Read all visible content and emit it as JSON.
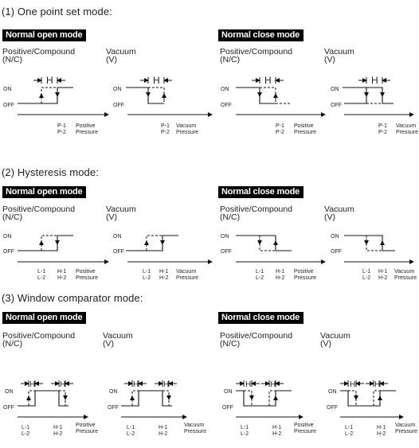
{
  "sections": [
    {
      "title": "(1) One point set mode:",
      "badges": [
        "Normal open mode",
        "Normal close mode"
      ],
      "col_labels": [
        "Positive/Compound\n(N/C)",
        "Vacuum\n(V)",
        "Positive/Compound\n(N/C)",
        "Vacuum\n(V)"
      ],
      "on_label": "ON",
      "off_label": "OFF",
      "h_label": "H",
      "x_labels": [
        {
          "a": "P-1",
          "b": "P-2",
          "c": "Positive",
          "d": "Pressure"
        },
        {
          "a": "P-1",
          "b": "P-2",
          "c": "Vacuum",
          "d": "Pressure"
        },
        {
          "a": "P-1",
          "b": "P-2",
          "c": "Positive",
          "d": "Pressure"
        },
        {
          "a": "P-1",
          "b": "P-2",
          "c": "Vacuum",
          "d": "Pressure"
        }
      ]
    },
    {
      "title": "(2) Hysteresis mode:",
      "badges": [
        "Normal open mode",
        "Normal close mode"
      ],
      "col_labels": [
        "Positive/Compound\n(N/C)",
        "Vacuum\n(V)",
        "Positive/Compound\n(N/C)",
        "Vacuum\n(V)"
      ],
      "on_label": "ON",
      "off_label": "OFF",
      "x_labels": [
        {
          "a": "L-1",
          "b": "L-2",
          "e": "H-1",
          "f": "H-2",
          "c": "Positive",
          "d": "Pressure"
        },
        {
          "a": "L-1",
          "b": "L-2",
          "e": "H-1",
          "f": "H-2",
          "c": "Vacuum",
          "d": "Pressure"
        },
        {
          "a": "L-1",
          "b": "L-2",
          "e": "H-1",
          "f": "H-2",
          "c": "Positive",
          "d": "Pressure"
        },
        {
          "a": "L-1",
          "b": "L-2",
          "e": "H-1",
          "f": "H-2",
          "c": "Vacuum",
          "d": "Pressure"
        }
      ]
    },
    {
      "title": "(3) Window comparator mode:",
      "badges": [
        "Normal open mode",
        "Normal close mode"
      ],
      "col_labels": [
        "Positive/Compound\n(N/C)",
        "Vacuum\n(V)",
        "Positive/Compound\n(N/C)",
        "Vacuum\n(V)"
      ],
      "on_label": "ON",
      "off_label": "OFF",
      "h_label": "H",
      "x_labels": [
        {
          "a": "L-1",
          "b": "L-2",
          "e": "H-1",
          "f": "H-2",
          "c": "Positive",
          "d": "Pressure"
        },
        {
          "a": "L-1",
          "b": "L-2",
          "e": "H-1",
          "f": "H-2",
          "c": "Vacuum",
          "d": "Pressure"
        },
        {
          "a": "L-1",
          "b": "L-2",
          "e": "H-1",
          "f": "H-2",
          "c": "Positive",
          "d": "Pressure"
        },
        {
          "a": "L-1",
          "b": "L-2",
          "e": "H-1",
          "f": "H-2",
          "c": "Vacuum",
          "d": "Pressure"
        }
      ]
    }
  ]
}
